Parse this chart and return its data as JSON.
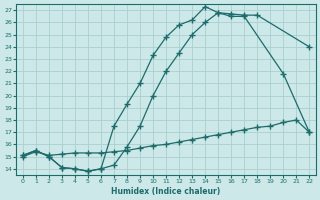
{
  "xlabel": "Humidex (Indice chaleur)",
  "bg_color": "#cce8e8",
  "grid_color": "#aacfcf",
  "line_color": "#1e6b6b",
  "xlim": [
    -0.5,
    22.5
  ],
  "ylim": [
    13.5,
    27.5
  ],
  "xticks": [
    0,
    1,
    2,
    3,
    4,
    5,
    6,
    7,
    8,
    9,
    10,
    11,
    12,
    13,
    14,
    15,
    16,
    17,
    18,
    19,
    20,
    21,
    22
  ],
  "yticks": [
    14,
    15,
    16,
    17,
    18,
    19,
    20,
    21,
    22,
    23,
    24,
    25,
    26,
    27
  ],
  "line1_x": [
    0,
    1,
    2,
    3,
    4,
    5,
    6,
    7,
    8,
    9,
    10,
    11,
    12,
    13,
    14,
    15,
    16,
    17,
    18,
    22
  ],
  "line1_y": [
    15.1,
    15.5,
    15.0,
    14.1,
    14.0,
    13.8,
    14.0,
    17.5,
    19.3,
    21.0,
    23.3,
    24.8,
    25.8,
    26.2,
    27.3,
    26.8,
    26.7,
    26.6,
    26.6,
    24.0
  ],
  "line2_x": [
    0,
    1,
    2,
    3,
    4,
    5,
    6,
    7,
    8,
    9,
    10,
    11,
    12,
    13,
    14,
    15,
    16,
    17,
    20,
    22
  ],
  "line2_y": [
    15.1,
    15.5,
    15.0,
    14.1,
    14.0,
    13.8,
    14.0,
    14.3,
    15.8,
    17.5,
    20.0,
    22.0,
    23.5,
    25.0,
    26.0,
    26.8,
    26.5,
    26.5,
    21.8,
    17.0
  ],
  "line3_x": [
    0,
    1,
    2,
    3,
    4,
    5,
    6,
    7,
    8,
    9,
    10,
    11,
    12,
    13,
    14,
    15,
    16,
    17,
    18,
    19,
    20,
    21,
    22
  ],
  "line3_y": [
    15.0,
    15.4,
    15.1,
    15.2,
    15.3,
    15.3,
    15.3,
    15.4,
    15.5,
    15.7,
    15.9,
    16.0,
    16.2,
    16.4,
    16.6,
    16.8,
    17.0,
    17.2,
    17.4,
    17.5,
    17.8,
    18.0,
    17.0
  ]
}
